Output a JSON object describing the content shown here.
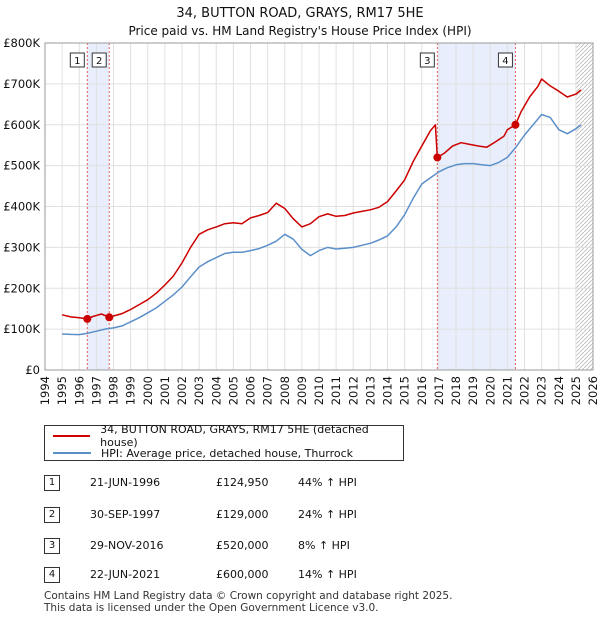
{
  "chart_data": {
    "type": "line",
    "title": "34, BUTTON ROAD, GRAYS, RM17 5HE",
    "subtitle": "Price paid vs. HM Land Registry's House Price Index (HPI)",
    "x_ticks": [
      "1994",
      "1995",
      "1996",
      "1997",
      "1998",
      "1999",
      "2000",
      "2001",
      "2002",
      "2003",
      "2004",
      "2005",
      "2006",
      "2007",
      "2008",
      "2009",
      "2010",
      "2011",
      "2012",
      "2013",
      "2014",
      "2015",
      "2016",
      "2017",
      "2018",
      "2019",
      "2020",
      "2021",
      "2022",
      "2023",
      "2024",
      "2025",
      "2026"
    ],
    "y_ticks": [
      "£0",
      "£100K",
      "£200K",
      "£300K",
      "£400K",
      "£500K",
      "£600K",
      "£700K",
      "£800K"
    ],
    "xlim": [
      1994,
      2026
    ],
    "ylim": [
      0,
      800000
    ],
    "series": [
      {
        "name": "34, BUTTON ROAD, GRAYS, RM17 5HE (detached house)",
        "color": "#cc0000",
        "x": [
          1995.0,
          1995.5,
          1996.0,
          1996.47,
          1996.8,
          1997.3,
          1997.75,
          1998.0,
          1998.5,
          1999.0,
          1999.5,
          2000.0,
          2000.5,
          2001.0,
          2001.5,
          2002.0,
          2002.5,
          2003.0,
          2003.5,
          2004.0,
          2004.5,
          2005.0,
          2005.5,
          2006.0,
          2006.5,
          2007.0,
          2007.5,
          2008.0,
          2008.5,
          2009.0,
          2009.5,
          2010.0,
          2010.5,
          2011.0,
          2011.5,
          2012.0,
          2012.5,
          2013.0,
          2013.5,
          2014.0,
          2014.5,
          2015.0,
          2015.5,
          2016.0,
          2016.5,
          2016.8,
          2016.91,
          2017.3,
          2017.8,
          2018.3,
          2018.8,
          2019.3,
          2019.8,
          2020.3,
          2020.8,
          2021.0,
          2021.47,
          2021.8,
          2022.3,
          2022.8,
          2023.0,
          2023.5,
          2024.0,
          2024.5,
          2025.0,
          2025.3
        ],
        "values": [
          135000,
          130000,
          128000,
          124950,
          131000,
          137000,
          129000,
          132000,
          138000,
          148000,
          160000,
          172000,
          188000,
          208000,
          230000,
          262000,
          300000,
          332000,
          343000,
          350000,
          358000,
          360000,
          358000,
          372000,
          378000,
          385000,
          408000,
          395000,
          370000,
          350000,
          358000,
          375000,
          382000,
          376000,
          378000,
          384000,
          388000,
          392000,
          398000,
          412000,
          438000,
          465000,
          510000,
          548000,
          585000,
          600000,
          520000,
          530000,
          548000,
          556000,
          552000,
          548000,
          545000,
          558000,
          572000,
          588000,
          600000,
          632000,
          668000,
          695000,
          712000,
          695000,
          682000,
          668000,
          675000,
          685000
        ]
      },
      {
        "name": "HPI: Average price, detached house, Thurrock",
        "color": "#5b8fc9",
        "x": [
          1995.0,
          1995.5,
          1996.0,
          1996.5,
          1997.0,
          1997.5,
          1998.0,
          1998.5,
          1999.0,
          1999.5,
          2000.0,
          2000.5,
          2001.0,
          2001.5,
          2002.0,
          2002.5,
          2003.0,
          2003.5,
          2004.0,
          2004.5,
          2005.0,
          2005.5,
          2006.0,
          2006.5,
          2007.0,
          2007.5,
          2008.0,
          2008.5,
          2009.0,
          2009.5,
          2010.0,
          2010.5,
          2011.0,
          2011.5,
          2012.0,
          2012.5,
          2013.0,
          2013.5,
          2014.0,
          2014.5,
          2015.0,
          2015.5,
          2016.0,
          2016.5,
          2017.0,
          2017.5,
          2018.0,
          2018.5,
          2019.0,
          2019.5,
          2020.0,
          2020.5,
          2021.0,
          2021.5,
          2022.0,
          2022.5,
          2023.0,
          2023.5,
          2024.0,
          2024.5,
          2025.0,
          2025.3
        ],
        "values": [
          88000,
          87000,
          86500,
          90000,
          95000,
          100000,
          103000,
          108000,
          118000,
          128000,
          140000,
          152000,
          168000,
          184000,
          203000,
          228000,
          252000,
          265000,
          275000,
          285000,
          288000,
          288000,
          292000,
          297000,
          305000,
          315000,
          332000,
          320000,
          295000,
          280000,
          292000,
          300000,
          296000,
          298000,
          300000,
          305000,
          310000,
          318000,
          328000,
          350000,
          380000,
          420000,
          455000,
          470000,
          485000,
          495000,
          502000,
          505000,
          505000,
          502000,
          500000,
          508000,
          520000,
          545000,
          575000,
          600000,
          625000,
          618000,
          588000,
          578000,
          590000,
          600000
        ]
      }
    ],
    "transactions": [
      {
        "label": "1",
        "x": 1996.47,
        "value": 124950,
        "date": "21-JUN-1996",
        "price": "£124,950",
        "hpi": "44% ↑ HPI"
      },
      {
        "label": "2",
        "x": 1997.75,
        "value": 129000,
        "date": "30-SEP-1997",
        "price": "£129,000",
        "hpi": "24% ↑ HPI"
      },
      {
        "label": "3",
        "x": 2016.91,
        "value": 520000,
        "date": "29-NOV-2016",
        "price": "£520,000",
        "hpi": "8% ↑ HPI"
      },
      {
        "label": "4",
        "x": 2021.47,
        "value": 600000,
        "date": "22-JUN-2021",
        "price": "£600,000",
        "hpi": "14% ↑ HPI"
      }
    ],
    "shaded_ranges": [
      [
        1996.47,
        1997.75
      ],
      [
        2016.91,
        2021.47
      ]
    ]
  },
  "legend": {
    "red_label": "34, BUTTON ROAD, GRAYS, RM17 5HE (detached house)",
    "blue_label": "HPI: Average price, detached house, Thurrock"
  },
  "table": [
    {
      "label": "1",
      "date": "21-JUN-1996",
      "price": "£124,950",
      "hpi": "44% ↑ HPI"
    },
    {
      "label": "2",
      "date": "30-SEP-1997",
      "price": "£129,000",
      "hpi": "24% ↑ HPI"
    },
    {
      "label": "3",
      "date": "29-NOV-2016",
      "price": "£520,000",
      "hpi": "8% ↑ HPI"
    },
    {
      "label": "4",
      "date": "22-JUN-2021",
      "price": "£600,000",
      "hpi": "14% ↑ HPI"
    }
  ],
  "footer": {
    "line1": "Contains HM Land Registry data © Crown copyright and database right 2025.",
    "line2": "This data is licensed under the Open Government Licence v3.0."
  }
}
